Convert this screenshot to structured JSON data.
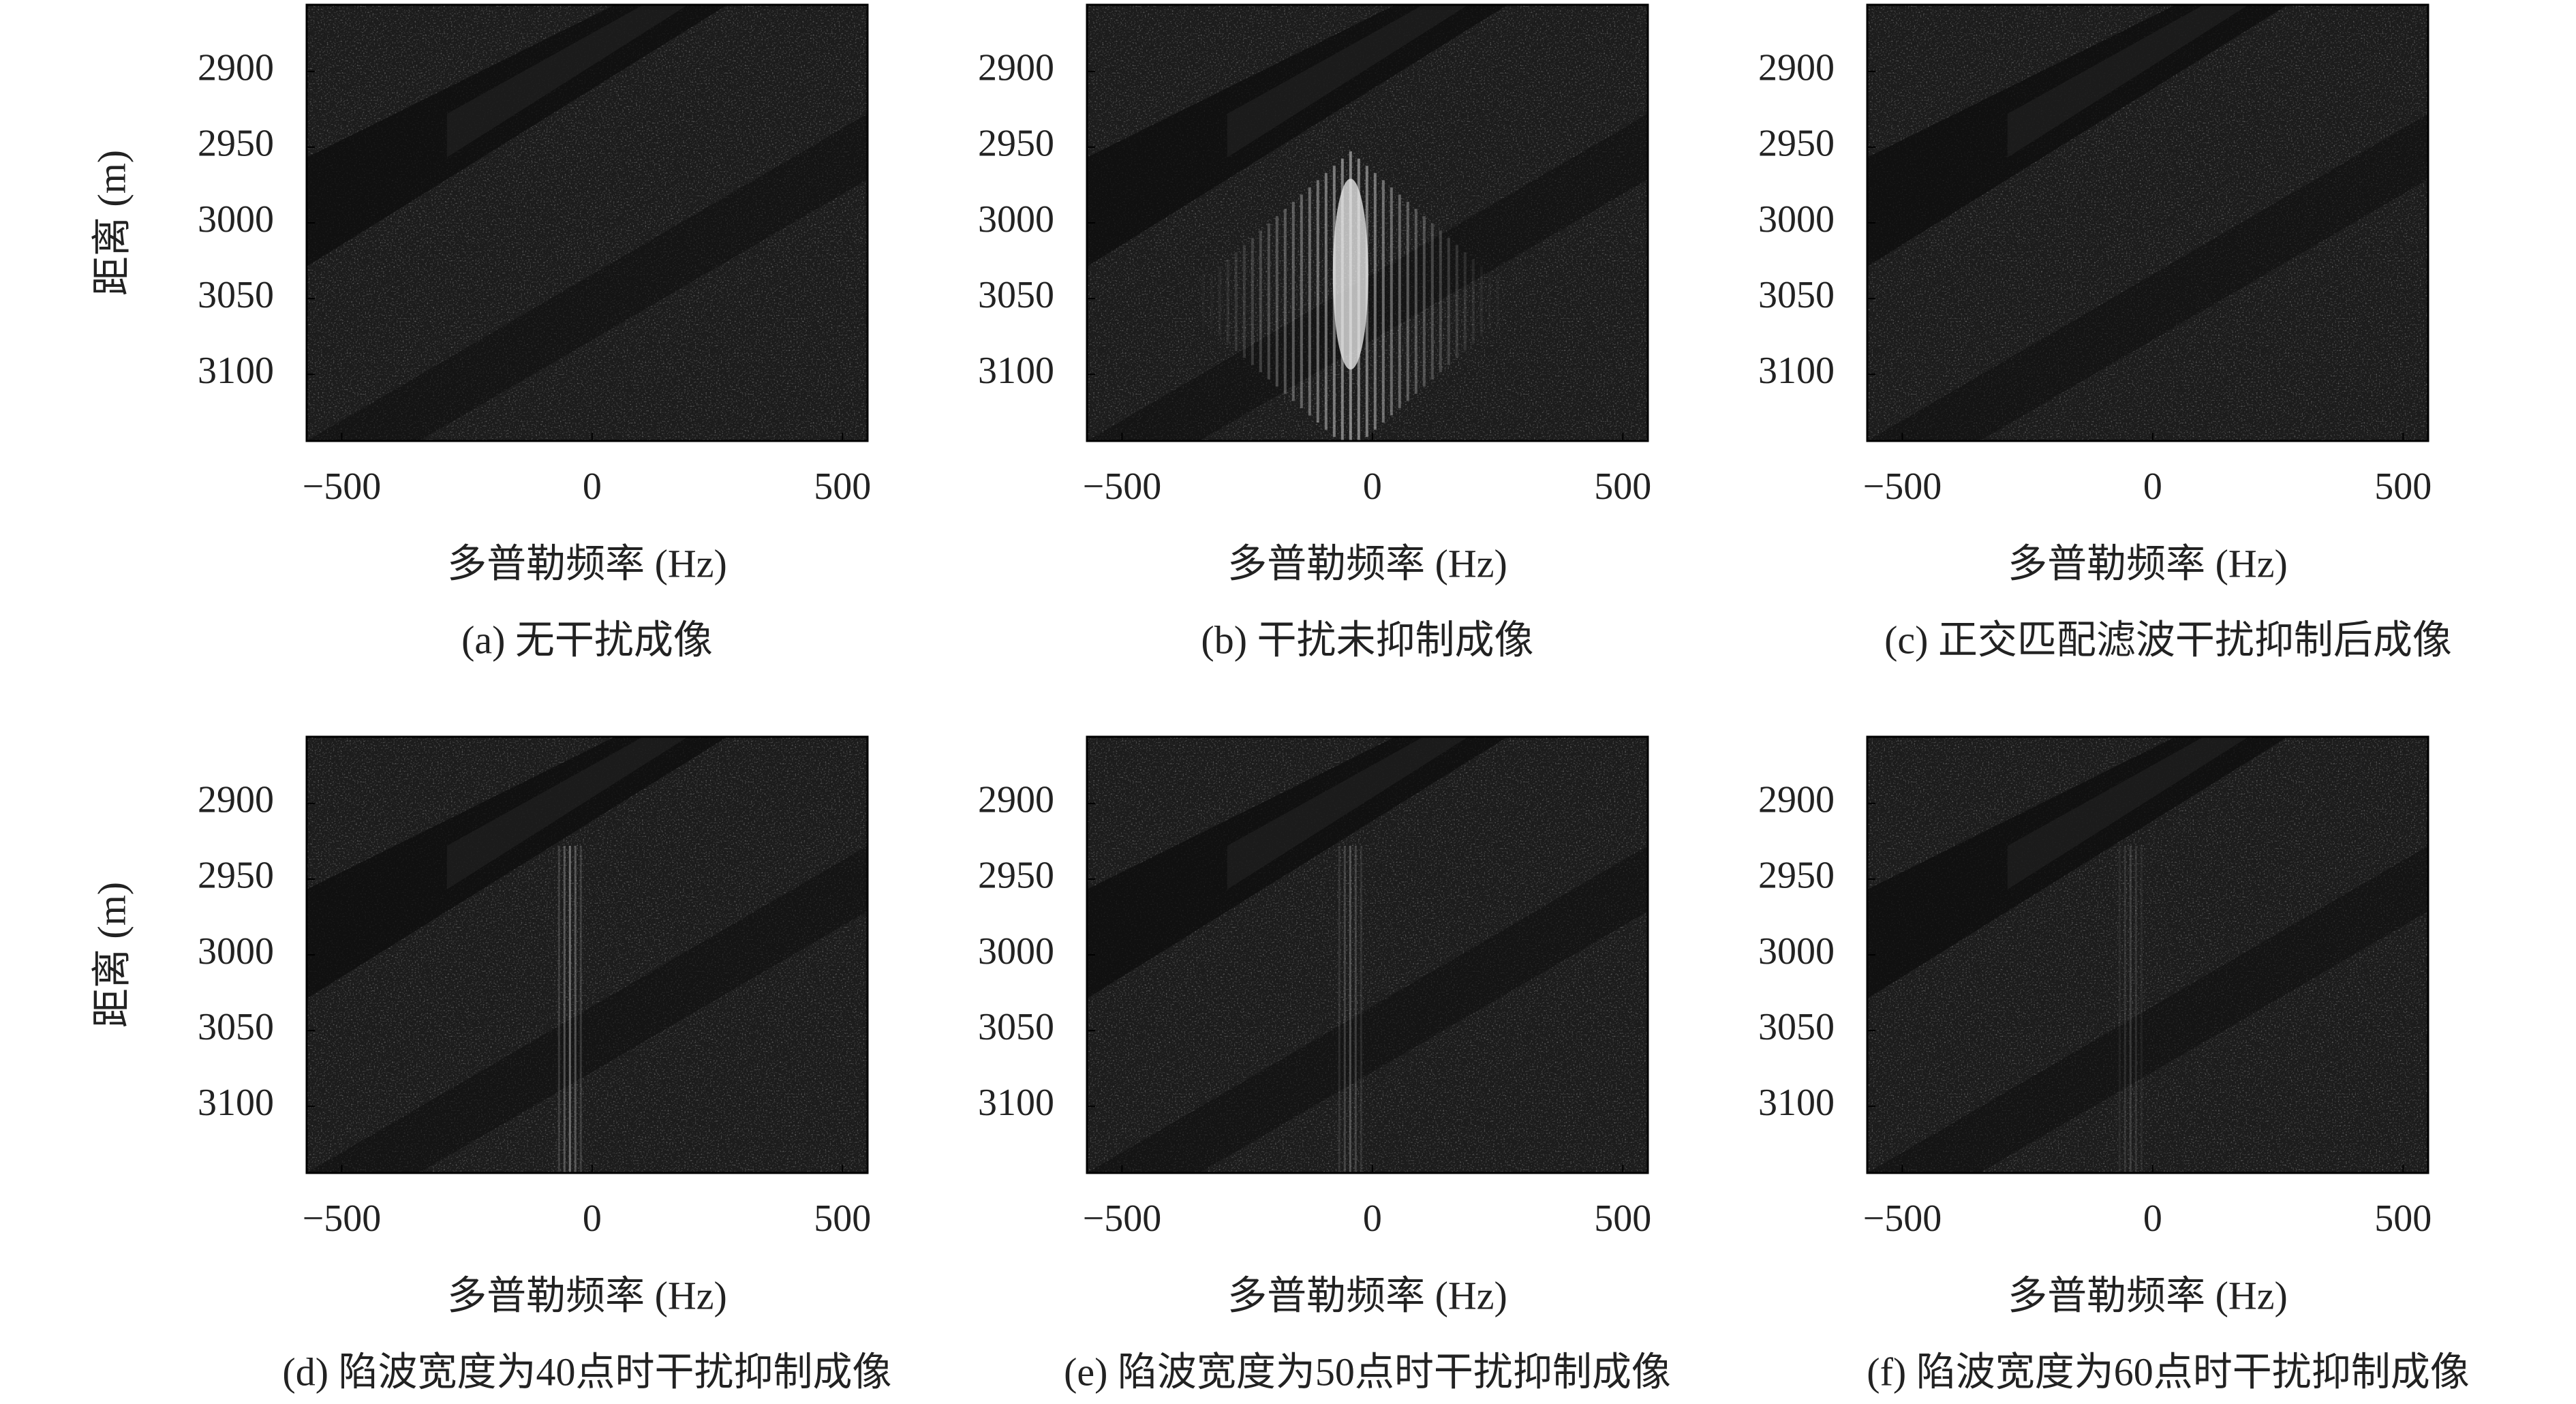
{
  "chart_data": [
    {
      "type": "image",
      "caption": "(a) 无干扰成像",
      "xlabel": "多普勒频率 (Hz)",
      "ylabel": "距离 (m)",
      "xlim": [
        -570,
        550
      ],
      "ylim": [
        2856,
        3144
      ],
      "invert_y": true,
      "xticks": [
        {
          "value": -500,
          "label": "−500"
        },
        0,
        500
      ],
      "yticks": [
        2900,
        2950,
        3000,
        3050,
        3100
      ]
    },
    {
      "type": "image",
      "caption": "(b) 干扰未抑制成像",
      "xlabel": "多普勒频率 (Hz)",
      "xlim": [
        -570,
        550
      ],
      "ylim": [
        2856,
        3144
      ],
      "invert_y": true,
      "xticks": [
        {
          "value": -500,
          "label": "−500"
        },
        0,
        500
      ],
      "yticks": [
        2900,
        2950,
        3000,
        3050,
        3100
      ]
    },
    {
      "type": "image",
      "caption": "(c) 正交匹配滤波干扰抑制后成像",
      "xlabel": "多普勒频率 (Hz)",
      "xlim": [
        -570,
        550
      ],
      "ylim": [
        2856,
        3144
      ],
      "invert_y": true,
      "xticks": [
        {
          "value": -500,
          "label": "−500"
        },
        0,
        500
      ],
      "yticks": [
        2900,
        2950,
        3000,
        3050,
        3100
      ]
    },
    {
      "type": "image",
      "caption": "(d) 陷波宽度为40点时干扰抑制成像",
      "xlabel": "多普勒频率 (Hz)",
      "ylabel": "距离 (m)",
      "xlim": [
        -570,
        550
      ],
      "ylim": [
        2856,
        3144
      ],
      "invert_y": true,
      "xticks": [
        {
          "value": -500,
          "label": "−500"
        },
        0,
        500
      ],
      "yticks": [
        2900,
        2950,
        3000,
        3050,
        3100
      ]
    },
    {
      "type": "image",
      "caption": "(e) 陷波宽度为50点时干扰抑制成像",
      "xlabel": "多普勒频率 (Hz)",
      "xlim": [
        -570,
        550
      ],
      "ylim": [
        2856,
        3144
      ],
      "invert_y": true,
      "xticks": [
        {
          "value": -500,
          "label": "−500"
        },
        0,
        500
      ],
      "yticks": [
        2900,
        2950,
        3000,
        3050,
        3100
      ]
    },
    {
      "type": "image",
      "caption": "(f) 陷波宽度为60点时干扰抑制成像",
      "xlabel": "多普勒频率 (Hz)",
      "xlim": [
        -570,
        550
      ],
      "ylim": [
        2856,
        3144
      ],
      "invert_y": true,
      "xticks": [
        {
          "value": -500,
          "label": "−500"
        },
        0,
        500
      ],
      "yticks": [
        2900,
        2950,
        3000,
        3050,
        3100
      ]
    }
  ]
}
